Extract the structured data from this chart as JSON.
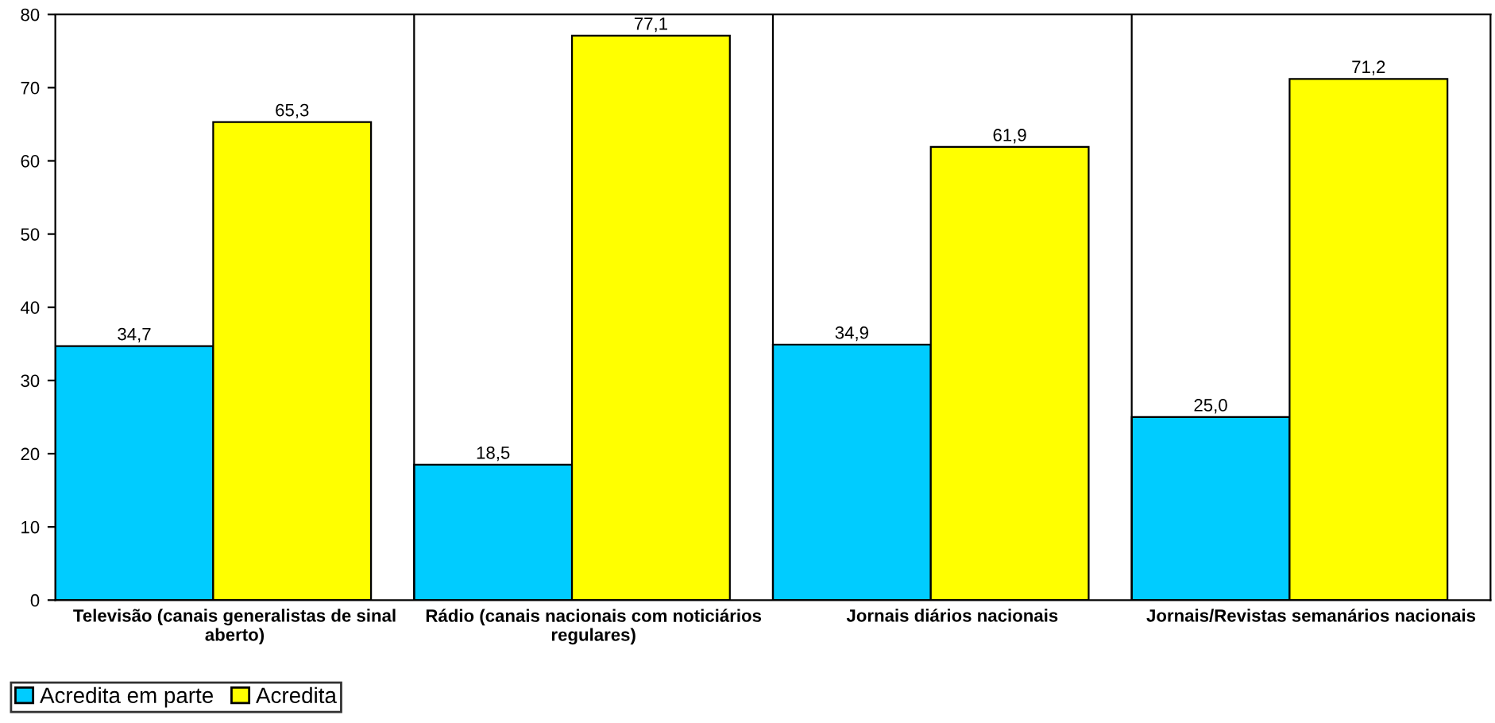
{
  "chart_data": {
    "type": "bar",
    "categories": [
      "Televisão (canais generalistas de sinal aberto)",
      "Rádio (canais nacionais com noticiários regulares)",
      "Jornais diários nacionais",
      "Jornais/Revistas semanários nacionais"
    ],
    "series": [
      {
        "name": "Acredita em parte",
        "color": "#00ccff",
        "values": [
          34.7,
          18.5,
          34.9,
          25.0
        ],
        "value_labels": [
          "34,7",
          "18,5",
          "34,9",
          "25,0"
        ]
      },
      {
        "name": "Acredita",
        "color": "#ffff00",
        "values": [
          65.3,
          77.1,
          61.9,
          71.2
        ],
        "value_labels": [
          "65,3",
          "77,1",
          "61,9",
          "71,2"
        ]
      }
    ],
    "ylim": [
      0,
      80
    ],
    "yticks": [
      0,
      10,
      20,
      30,
      40,
      50,
      60,
      70,
      80
    ],
    "grid": "x",
    "legend": "bottom left"
  }
}
